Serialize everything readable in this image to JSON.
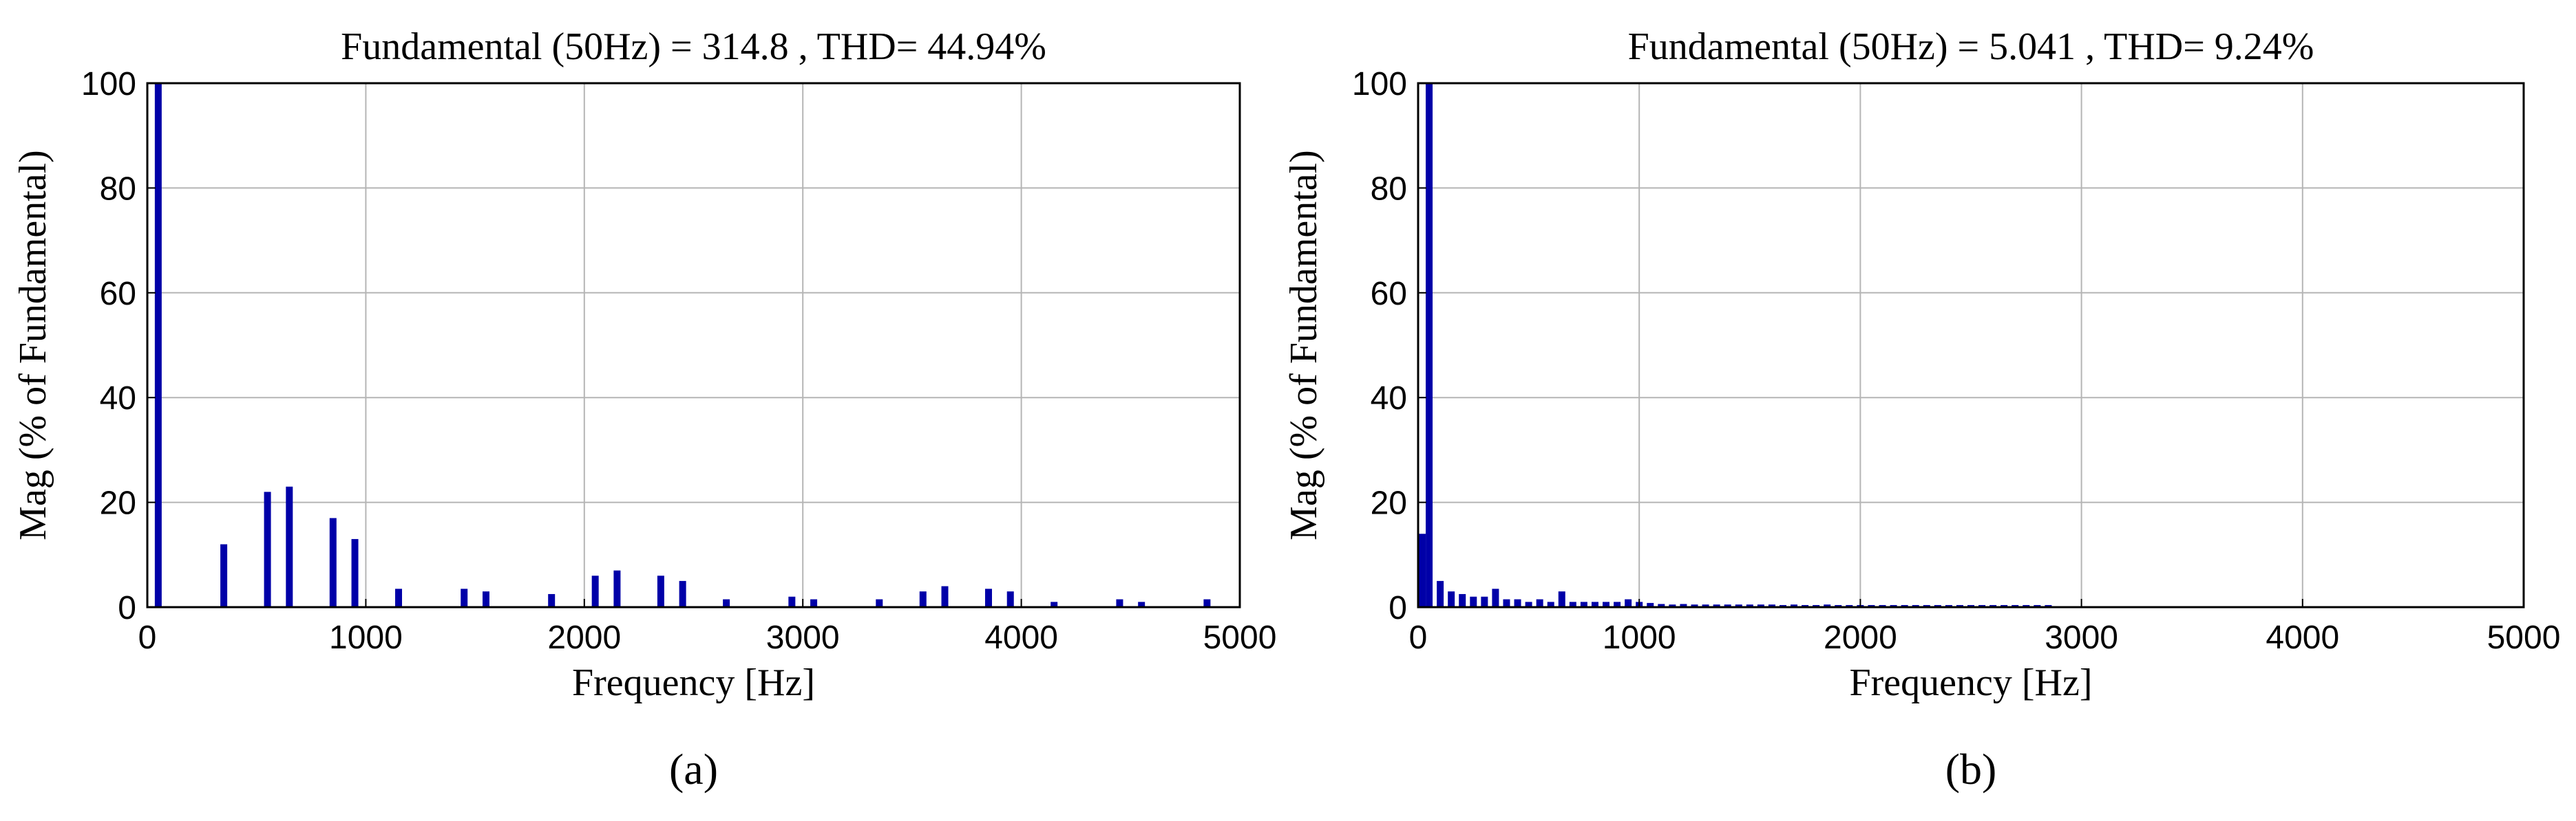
{
  "chart_data": [
    {
      "type": "bar",
      "panel_label": "(a)",
      "title": "Fundamental (50Hz) = 314.8 , THD= 44.94%",
      "xlabel": "Frequency [Hz]",
      "ylabel": "Mag (% of Fundamental)",
      "xlim": [
        0,
        5000
      ],
      "ylim": [
        0,
        100
      ],
      "xticks": [
        0,
        1000,
        2000,
        3000,
        4000,
        5000
      ],
      "yticks": [
        0,
        20,
        40,
        60,
        80,
        100
      ],
      "grid": true,
      "bar_color": "#0000a8",
      "x": [
        50,
        350,
        550,
        650,
        850,
        950,
        1150,
        1450,
        1550,
        1850,
        2050,
        2150,
        2350,
        2450,
        2650,
        2950,
        3050,
        3350,
        3550,
        3650,
        3850,
        3950,
        4150,
        4450,
        4550,
        4850
      ],
      "values": [
        100,
        12,
        22,
        23,
        17,
        13,
        3.5,
        3.5,
        3,
        2.5,
        6,
        7,
        6,
        5,
        1.5,
        2,
        1.5,
        1.5,
        3,
        4,
        3.5,
        3,
        1,
        1.5,
        1,
        1.5
      ]
    },
    {
      "type": "bar",
      "panel_label": "(b)",
      "title": "Fundamental (50Hz) = 5.041 , THD= 9.24%",
      "xlabel": "Frequency [Hz]",
      "ylabel": "Mag (% of Fundamental)",
      "xlim": [
        0,
        5000
      ],
      "ylim": [
        0,
        100
      ],
      "xticks": [
        0,
        1000,
        2000,
        3000,
        4000,
        5000
      ],
      "yticks": [
        0,
        20,
        40,
        60,
        80,
        100
      ],
      "grid": true,
      "bar_color": "#0000a8",
      "x": [
        0,
        50,
        100,
        150,
        200,
        250,
        300,
        350,
        400,
        450,
        500,
        550,
        600,
        650,
        700,
        750,
        800,
        850,
        900,
        950,
        1000,
        1050,
        1100,
        1150,
        1200,
        1250,
        1300,
        1350,
        1400,
        1450,
        1500,
        1550,
        1600,
        1650,
        1700,
        1750,
        1800,
        1850,
        1900,
        1950,
        2000,
        2050,
        2100,
        2150,
        2200,
        2250,
        2300,
        2350,
        2400,
        2450,
        2500,
        2550,
        2600,
        2650,
        2700,
        2750,
        2800,
        2850
      ],
      "values": [
        14,
        100,
        5,
        3,
        2.5,
        2,
        2,
        3.5,
        1.5,
        1.5,
        1,
        1.5,
        1,
        3,
        1,
        1,
        1,
        1,
        1,
        1.5,
        1,
        0.8,
        0.6,
        0.5,
        0.6,
        0.5,
        0.5,
        0.5,
        0.5,
        0.5,
        0.5,
        0.5,
        0.5,
        0.4,
        0.5,
        0.4,
        0.4,
        0.5,
        0.4,
        0.4,
        0.4,
        0.4,
        0.4,
        0.4,
        0.4,
        0.4,
        0.4,
        0.4,
        0.4,
        0.4,
        0.4,
        0.4,
        0.4,
        0.4,
        0.4,
        0.4,
        0.4,
        0.4
      ]
    }
  ]
}
